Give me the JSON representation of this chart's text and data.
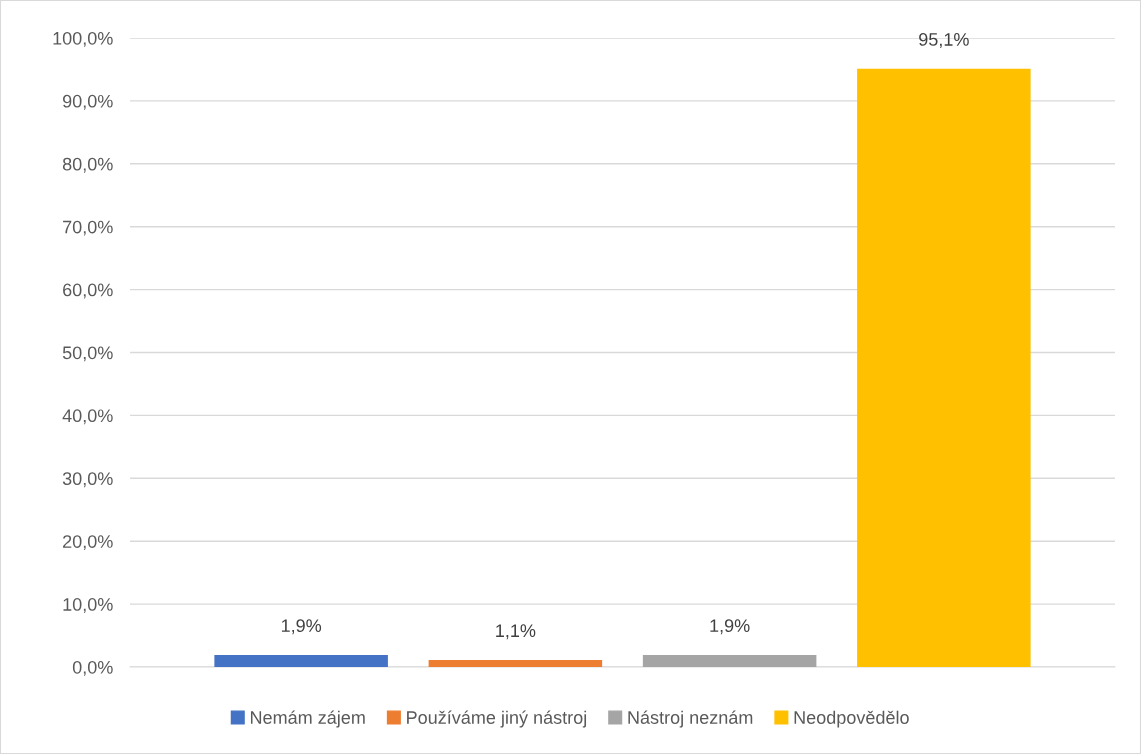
{
  "chart_data": {
    "type": "bar",
    "categories": [
      null
    ],
    "series": [
      {
        "name": "Nemám zájem",
        "color": "#4472c4",
        "values": [
          1.9
        ],
        "value_labels": [
          "1,9%"
        ]
      },
      {
        "name": "Používáme jiný nástroj",
        "color": "#ed7d31",
        "values": [
          1.1
        ],
        "value_labels": [
          "1,1%"
        ]
      },
      {
        "name": "Nástroj neznám",
        "color": "#a5a5a5",
        "values": [
          1.9
        ],
        "value_labels": [
          "1,9%"
        ]
      },
      {
        "name": "Neodpovědělo",
        "color": "#ffc000",
        "values": [
          95.1
        ],
        "value_labels": [
          "95,1%"
        ]
      }
    ],
    "ylim": [
      0,
      100
    ],
    "yticks": [
      {
        "value": 0,
        "label": "0,0%"
      },
      {
        "value": 10,
        "label": "10,0%"
      },
      {
        "value": 20,
        "label": "20,0%"
      },
      {
        "value": 30,
        "label": "30,0%"
      },
      {
        "value": 40,
        "label": "40,0%"
      },
      {
        "value": 50,
        "label": "50,0%"
      },
      {
        "value": 60,
        "label": "60,0%"
      },
      {
        "value": 70,
        "label": "70,0%"
      },
      {
        "value": 80,
        "label": "80,0%"
      },
      {
        "value": 90,
        "label": "90,0%"
      },
      {
        "value": 100,
        "label": "100,0%"
      }
    ],
    "grid": "y",
    "legend": "bottom"
  }
}
